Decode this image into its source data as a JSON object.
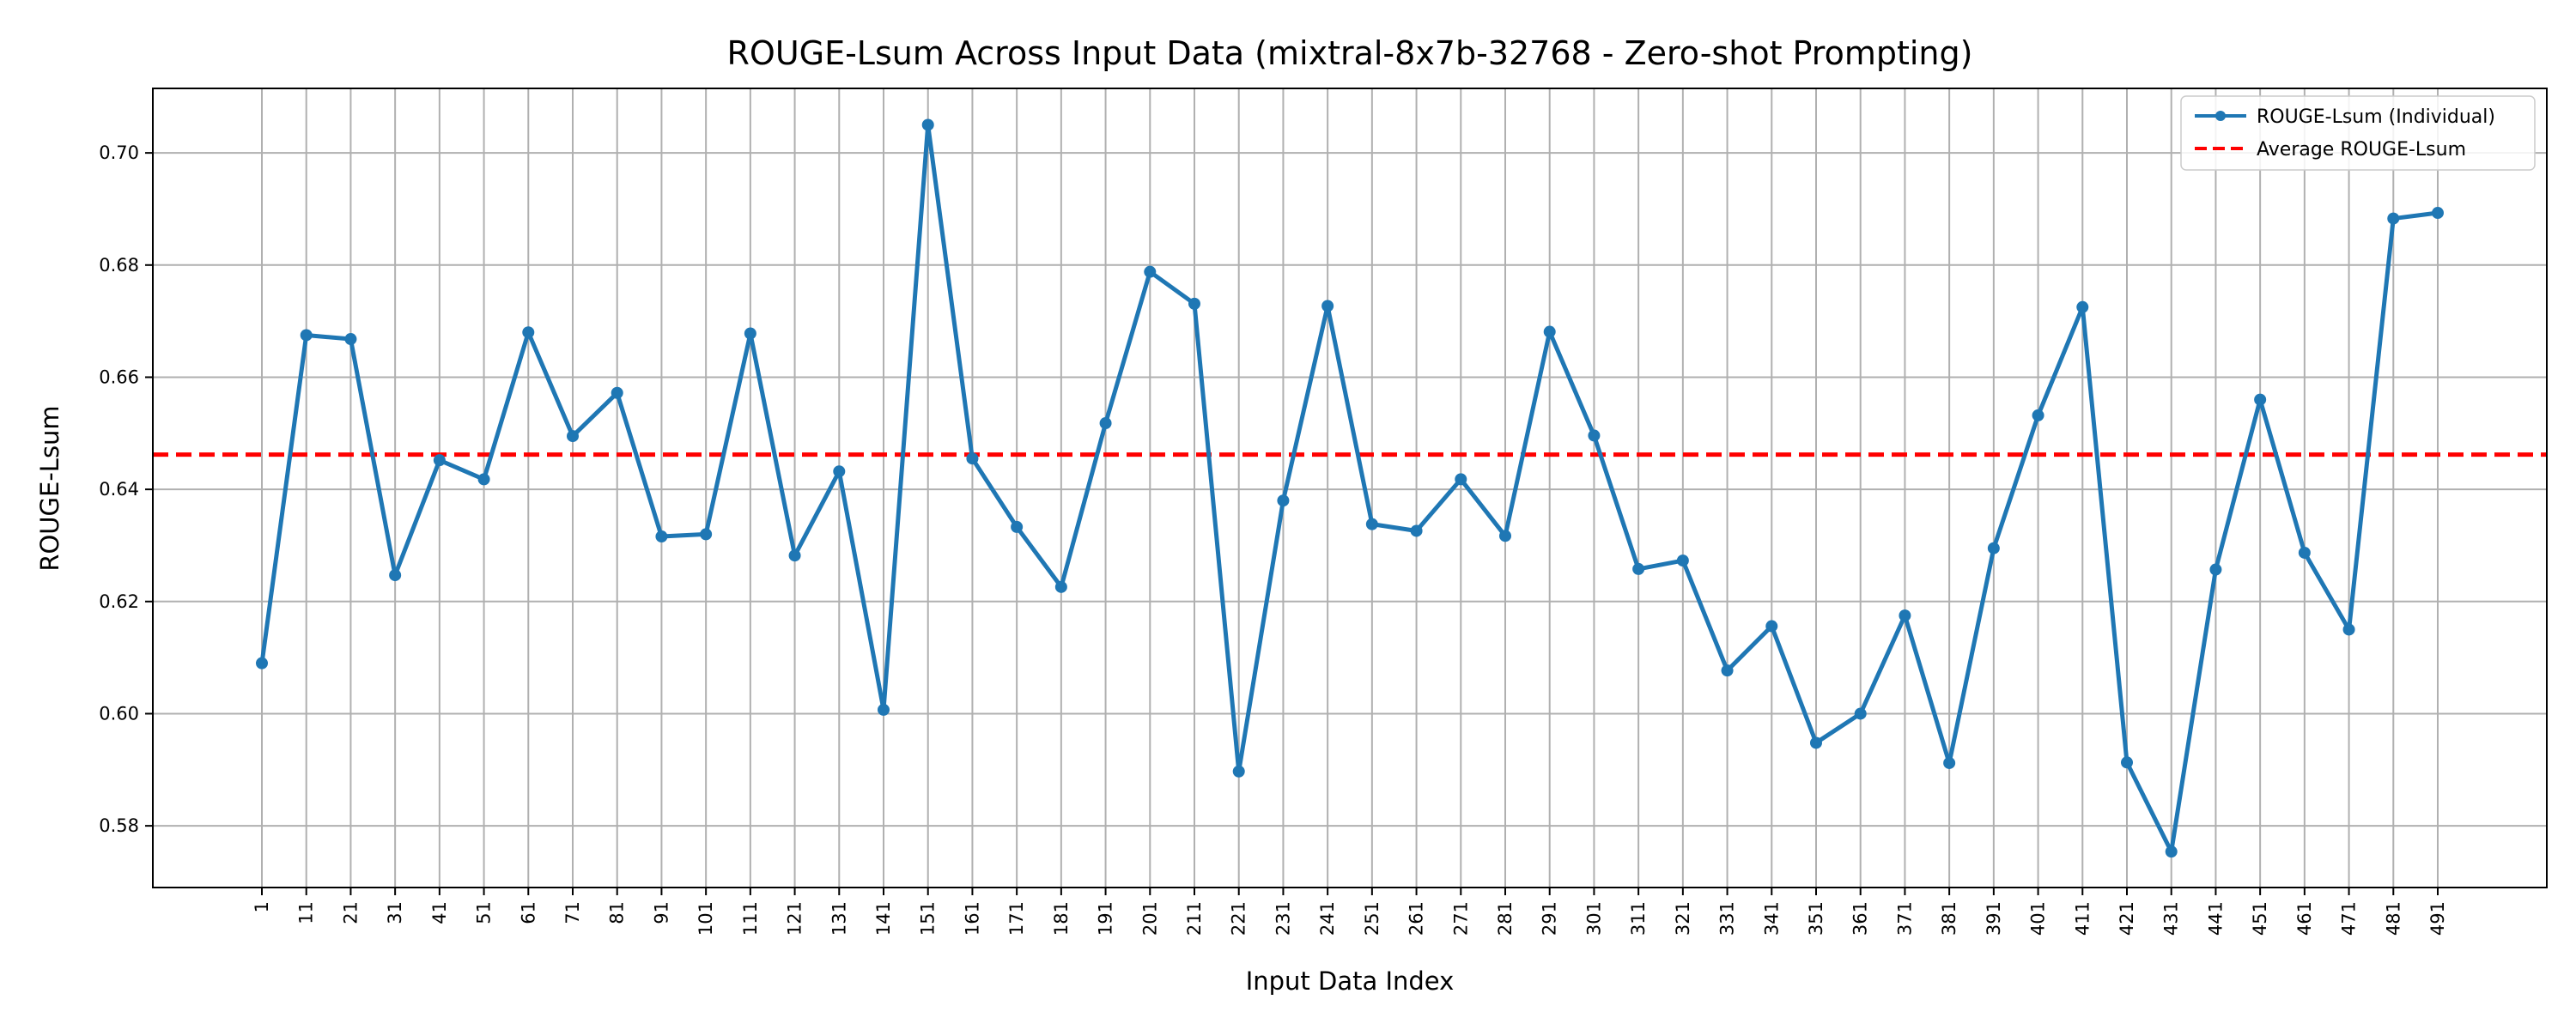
{
  "chart_data": {
    "type": "line",
    "title": "ROUGE-Lsum Across Input Data (mixtral-8x7b-32768 - Zero-shot Prompting)",
    "xlabel": "Input Data Index",
    "ylabel": "ROUGE-Lsum",
    "ylim": [
      0.569,
      0.7115
    ],
    "yticks": [
      0.58,
      0.6,
      0.62,
      0.64,
      0.66,
      0.68,
      0.7
    ],
    "grid": true,
    "legend_position": "top-right",
    "x": [
      1,
      11,
      21,
      31,
      41,
      51,
      61,
      71,
      81,
      91,
      101,
      111,
      121,
      131,
      141,
      151,
      161,
      171,
      181,
      191,
      201,
      211,
      221,
      231,
      241,
      251,
      261,
      271,
      281,
      291,
      301,
      311,
      321,
      331,
      341,
      351,
      361,
      371,
      381,
      391,
      401,
      411,
      421,
      431,
      441,
      451,
      461,
      471,
      481,
      491
    ],
    "series": [
      {
        "name": "ROUGE-Lsum (Individual)",
        "color": "#1f77b4",
        "style": "solid-marker",
        "values": [
          0.609,
          0.6675,
          0.6668,
          0.6247,
          0.6452,
          0.6418,
          0.668,
          0.6495,
          0.6572,
          0.6316,
          0.632,
          0.6678,
          0.6282,
          0.6432,
          0.6007,
          0.705,
          0.6455,
          0.6333,
          0.6226,
          0.6518,
          0.6788,
          0.6731,
          0.5897,
          0.638,
          0.6727,
          0.6338,
          0.6326,
          0.6418,
          0.6317,
          0.6681,
          0.6496,
          0.6258,
          0.6273,
          0.6077,
          0.6156,
          0.5948,
          0.6,
          0.6175,
          0.5912,
          0.6295,
          0.6532,
          0.6725,
          0.5913,
          0.5754,
          0.6257,
          0.656,
          0.6287,
          0.615,
          0.6883,
          0.6893
        ]
      },
      {
        "name": "Average ROUGE-Lsum",
        "color": "#ff0000",
        "style": "dashed",
        "value": 0.6462
      }
    ]
  }
}
